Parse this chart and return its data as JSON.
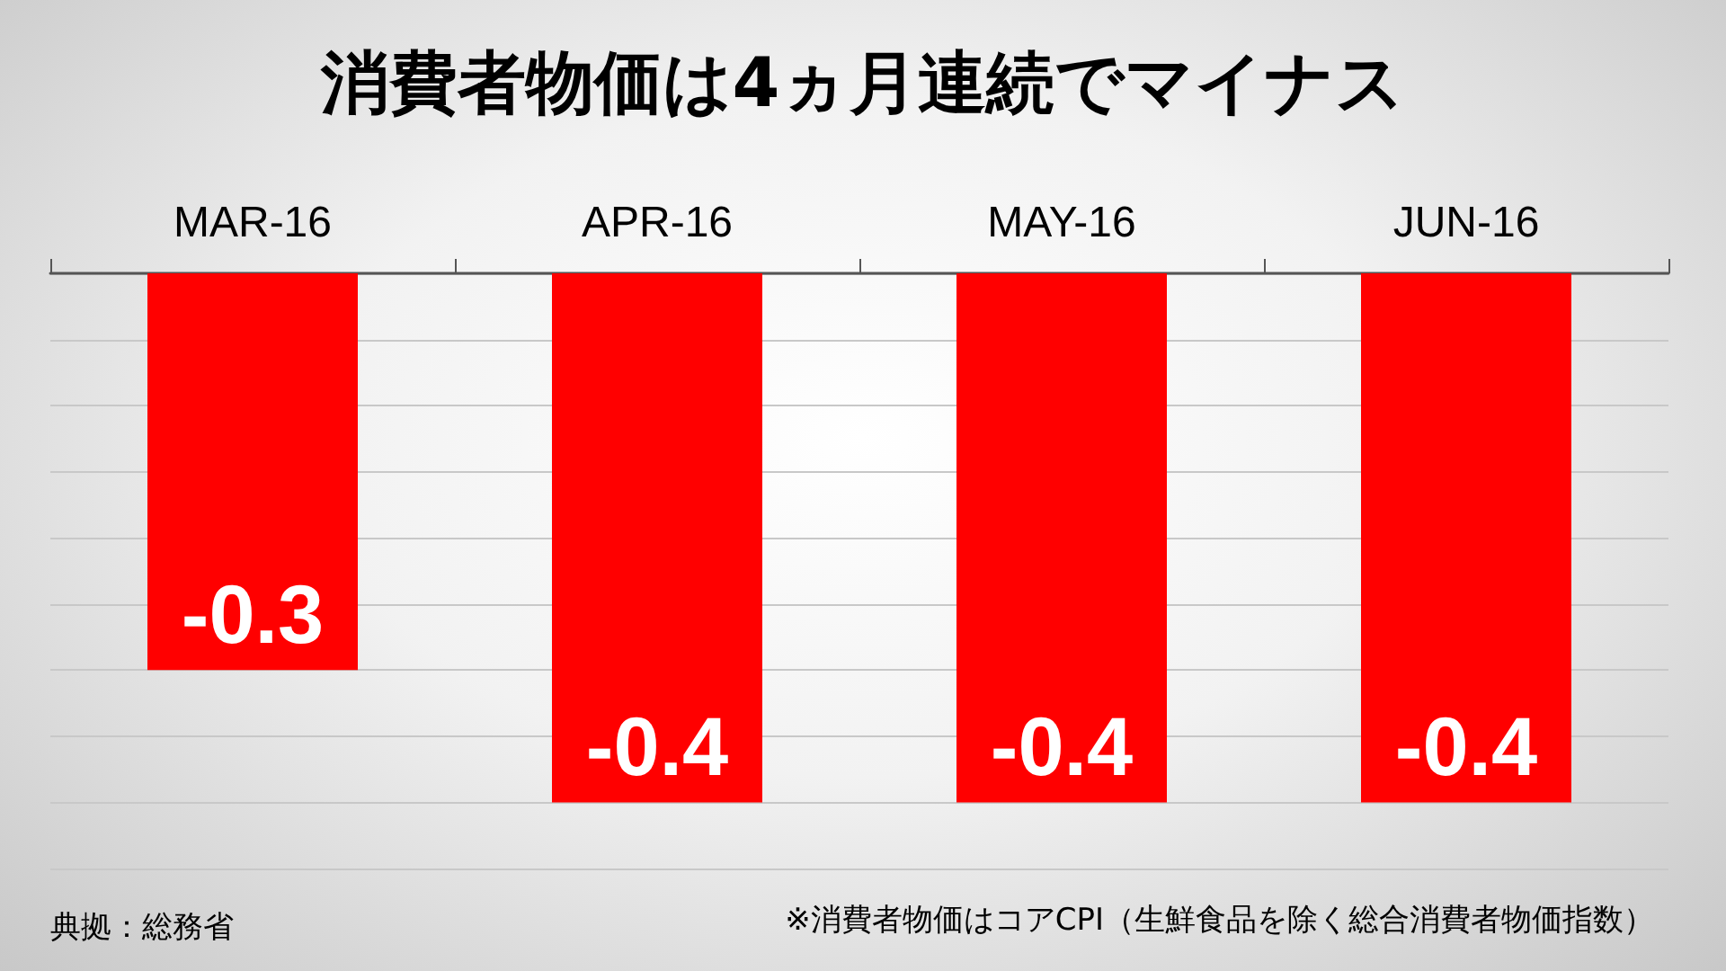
{
  "chart_data": {
    "type": "bar",
    "title": "消費者物価は4ヵ月連続でマイナス",
    "categories": [
      "MAR-16",
      "APR-16",
      "MAY-16",
      "JUN-16"
    ],
    "values": [
      -0.3,
      -0.4,
      -0.4,
      -0.4
    ],
    "color": "#ff0000",
    "data_labels": true,
    "ylim": [
      -0.45,
      0
    ],
    "yticks": [
      {
        "value": -0.45,
        "label": null
      },
      {
        "value": -0.4,
        "label": null
      },
      {
        "value": -0.35,
        "label": null
      },
      {
        "value": -0.3,
        "label": null
      },
      {
        "value": -0.25,
        "label": null
      },
      {
        "value": -0.2,
        "label": null
      },
      {
        "value": -0.15,
        "label": null
      },
      {
        "value": -0.1,
        "label": null
      },
      {
        "value": -0.05,
        "label": null
      },
      {
        "value": 0,
        "label": null
      }
    ],
    "grid": "y",
    "tick_labels": "x",
    "annotations": [
      "典拠：総務省",
      "※消費者物価はコアCPI（生鮮食品を除く総合消費者物価指数）"
    ]
  }
}
